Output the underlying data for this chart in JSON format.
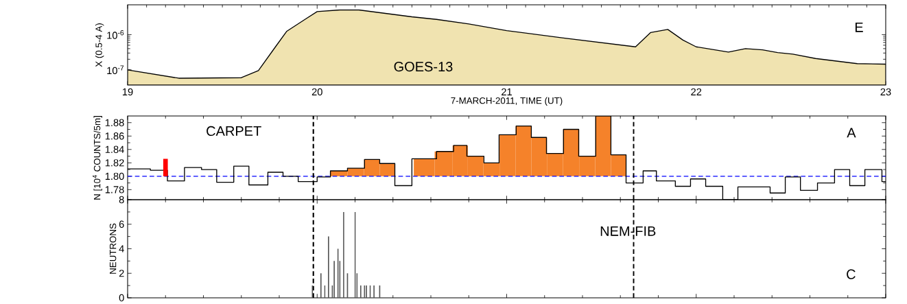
{
  "chart_data": [
    {
      "type": "area",
      "xlabel": "7-MARCH-2011,  TIME (UT)",
      "ylabel": "X (0.5-4 A)",
      "annotations": [
        "GOES-13",
        "E"
      ],
      "log": "y",
      "color": "#f0e3b0",
      "x": [
        19.0,
        19.27,
        19.6,
        19.69,
        19.78,
        19.84,
        19.94,
        20.0,
        20.12,
        20.22,
        20.5,
        20.63,
        20.8,
        21.0,
        21.3,
        21.68,
        21.76,
        21.85,
        21.93,
        22.0,
        22.17,
        22.26,
        22.35,
        22.43,
        22.51,
        22.63,
        22.85,
        23.0
      ],
      "values": [
        1e-07,
        5.8e-08,
        6e-08,
        9.5e-08,
        4.5e-07,
        1.25e-06,
        2.8e-06,
        4.5e-06,
        5e-06,
        5e-06,
        3.2e-06,
        2.7e-06,
        2e-06,
        1.3e-06,
        8e-07,
        4.5e-07,
        1.15e-06,
        1.4e-06,
        7e-07,
        4.5e-07,
        3.2e-07,
        4e-07,
        3.7e-07,
        3.1e-07,
        2.8e-07,
        2.1e-07,
        1.5e-07,
        1.45e-07
      ],
      "xlim": [
        19,
        23
      ],
      "ylim": [
        3.7e-08,
        7e-06
      ],
      "xticks": [
        19,
        20,
        21,
        22,
        23
      ],
      "yticks": [
        {
          "value": 1e-07,
          "label": "10$^{-7}$"
        },
        {
          "value": 1e-06,
          "label": "10$^{-6}$"
        }
      ]
    },
    {
      "type": "step",
      "ylabel": "N [10$^{4}$ COUNTS/5m]",
      "annotations": [
        "CARPET",
        "A"
      ],
      "series": [
        {
          "type": "bar",
          "color": "#f5822a",
          "x": [
            20.115,
            20.205,
            20.29,
            20.37
          ],
          "values": [
            0.008,
            0.012,
            0.025,
            0.019
          ],
          "base": [
            1.8,
            1.8,
            1.8,
            1.8
          ]
        },
        {
          "type": "bar",
          "color": "#f5822a",
          "x": [
            20.565,
            20.675,
            20.755,
            20.835,
            20.92,
            21.005,
            21.09,
            21.17,
            21.255,
            21.34,
            21.425,
            21.51,
            21.59
          ],
          "values": [
            0.026,
            0.037,
            0.046,
            0.03,
            0.02,
            0.062,
            0.075,
            0.058,
            0.034,
            0.07,
            0.03,
            0.09,
            0.032
          ],
          "base": [
            1.8,
            1.8,
            1.8,
            1.8,
            1.8,
            1.8,
            1.8,
            1.8,
            1.8,
            1.8,
            1.8,
            1.8,
            1.8
          ]
        },
        {
          "type": "step",
          "color": "#000000",
          "x": [
            19.0,
            19.12,
            19.21,
            19.3,
            19.39,
            19.47,
            19.56,
            19.64,
            19.74,
            19.82,
            19.9,
            20.0,
            20.07,
            20.16,
            20.25,
            20.33,
            20.41,
            20.5,
            20.63,
            20.72,
            20.79,
            20.88,
            20.96,
            21.05,
            21.13,
            21.21,
            21.3,
            21.38,
            21.47,
            21.55,
            21.63,
            21.72,
            21.79,
            21.89,
            21.97,
            22.05,
            22.14,
            22.22,
            22.31,
            22.39,
            22.47,
            22.55,
            22.64,
            22.73,
            22.81,
            22.89,
            22.98,
            23.0
          ],
          "values": [
            1.811,
            1.809,
            1.793,
            1.813,
            1.81,
            1.791,
            1.815,
            1.787,
            1.806,
            1.8,
            1.792,
            1.799,
            1.808,
            1.812,
            1.825,
            1.819,
            1.786,
            1.826,
            1.837,
            1.846,
            1.83,
            1.82,
            1.862,
            1.875,
            1.858,
            1.834,
            1.87,
            1.83,
            1.89,
            1.832,
            1.79,
            1.808,
            1.793,
            1.785,
            1.796,
            1.785,
            1.765,
            1.784,
            1.784,
            1.775,
            1.799,
            1.779,
            1.79,
            1.81,
            1.786,
            1.81,
            1.792,
            1.792
          ]
        },
        {
          "type": "bar",
          "color": "#ff0000",
          "x": [
            19.2
          ],
          "values": [
            0.026
          ],
          "base": [
            1.8
          ]
        }
      ],
      "ref_lines": [
        {
          "axis": "y",
          "value": 1.8,
          "color": "#0000ff",
          "line_style": "dashed"
        },
        {
          "axis": "x",
          "value": 19.98,
          "color": "#000000",
          "line_style": "dashed"
        },
        {
          "axis": "x",
          "value": 21.67,
          "color": "#000000",
          "line_style": "dashed"
        }
      ],
      "xlim": [
        19,
        23
      ],
      "ylim": [
        1.765,
        1.89
      ],
      "xticks": [
        19,
        20,
        21,
        22,
        23
      ],
      "yticks": [
        1.78,
        {
          "value": 1.8,
          "label": "1.80"
        },
        1.82,
        1.84,
        1.86,
        1.88
      ],
      "tick_labels": "y"
    },
    {
      "type": "bar",
      "ylabel": "NEUTRONS",
      "annotations": [
        "NEM-FIB",
        "C"
      ],
      "color": "#555555",
      "x": [
        19.975,
        20.02,
        20.04,
        20.06,
        20.08,
        20.09,
        20.11,
        20.12,
        20.14,
        20.16,
        20.2,
        20.21,
        20.23,
        20.25,
        20.26,
        20.28,
        20.3,
        20.33
      ],
      "values": [
        1,
        2,
        1,
        5,
        1,
        3,
        4,
        3,
        7,
        2,
        7,
        2,
        1,
        1,
        1,
        1,
        1,
        1
      ],
      "ref_lines": [
        {
          "axis": "x",
          "value": 19.98,
          "color": "#000000",
          "line_style": "dashed"
        },
        {
          "axis": "x",
          "value": 21.67,
          "color": "#000000",
          "line_style": "dashed"
        }
      ],
      "xlim": [
        19,
        23
      ],
      "ylim": [
        0,
        8
      ],
      "xticks": [
        19,
        20,
        21,
        22,
        23
      ],
      "yticks": [
        0,
        2,
        4,
        6,
        8
      ],
      "tick_labels": "y"
    }
  ]
}
